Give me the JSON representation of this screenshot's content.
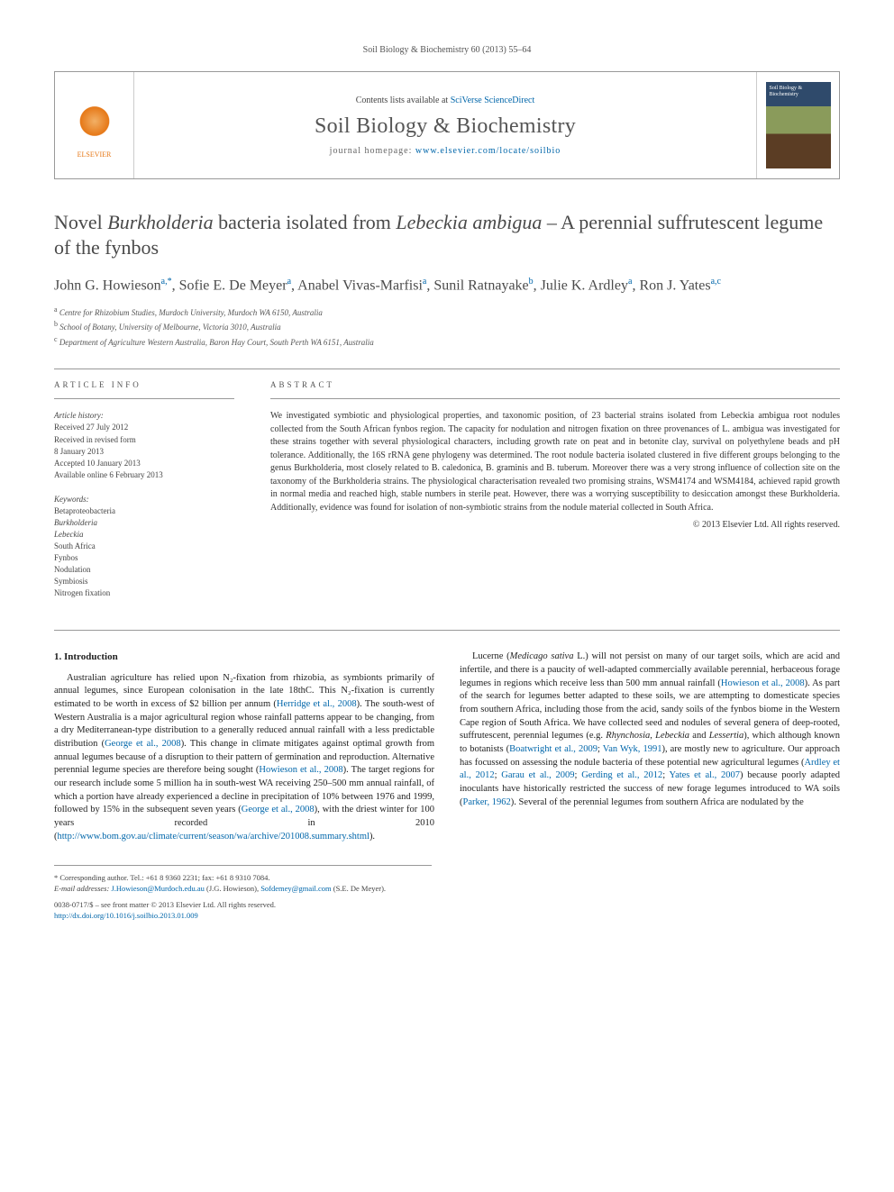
{
  "running_head": "Soil Biology & Biochemistry 60 (2013) 55–64",
  "banner": {
    "contents_prefix": "Contents lists available at ",
    "contents_link": "SciVerse ScienceDirect",
    "journal_title": "Soil Biology & Biochemistry",
    "homepage_prefix": "journal homepage: ",
    "homepage_url": "www.elsevier.com/locate/soilbio",
    "publisher_name": "ELSEVIER",
    "cover_text": "Soil Biology & Biochemistry"
  },
  "title_parts": {
    "p1": "Novel ",
    "i1": "Burkholderia",
    "p2": " bacteria isolated from ",
    "i2": "Lebeckia ambigua",
    "p3": " – A perennial suffrutescent legume of the fynbos"
  },
  "authors_html": "John G. Howieson",
  "authors": [
    {
      "name": "John G. Howieson",
      "sup": "a,*"
    },
    {
      "name": "Sofie E. De Meyer",
      "sup": "a"
    },
    {
      "name": "Anabel Vivas-Marfisi",
      "sup": "a"
    },
    {
      "name": "Sunil Ratnayake",
      "sup": "b"
    },
    {
      "name": "Julie K. Ardley",
      "sup": "a"
    },
    {
      "name": "Ron J. Yates",
      "sup": "a,c"
    }
  ],
  "affiliations": [
    {
      "sup": "a",
      "text": "Centre for Rhizobium Studies, Murdoch University, Murdoch WA 6150, Australia"
    },
    {
      "sup": "b",
      "text": "School of Botany, University of Melbourne, Victoria 3010, Australia"
    },
    {
      "sup": "c",
      "text": "Department of Agriculture Western Australia, Baron Hay Court, South Perth WA 6151, Australia"
    }
  ],
  "article_info": {
    "head": "ARTICLE INFO",
    "history_label": "Article history:",
    "history": [
      "Received 27 July 2012",
      "Received in revised form",
      "8 January 2013",
      "Accepted 10 January 2013",
      "Available online 6 February 2013"
    ],
    "keywords_label": "Keywords:",
    "keywords": [
      "Betaproteobacteria",
      "Burkholderia",
      "Lebeckia",
      "South Africa",
      "Fynbos",
      "Nodulation",
      "Symbiosis",
      "Nitrogen fixation"
    ]
  },
  "abstract": {
    "head": "ABSTRACT",
    "text": "We investigated symbiotic and physiological properties, and taxonomic position, of 23 bacterial strains isolated from Lebeckia ambigua root nodules collected from the South African fynbos region. The capacity for nodulation and nitrogen fixation on three provenances of L. ambigua was investigated for these strains together with several physiological characters, including growth rate on peat and in betonite clay, survival on polyethylene beads and pH tolerance. Additionally, the 16S rRNA gene phylogeny was determined. The root nodule bacteria isolated clustered in five different groups belonging to the genus Burkholderia, most closely related to B. caledonica, B. graminis and B. tuberum. Moreover there was a very strong influence of collection site on the taxonomy of the Burkholderia strains. The physiological characterisation revealed two promising strains, WSM4174 and WSM4184, achieved rapid growth in normal media and reached high, stable numbers in sterile peat. However, there was a worrying susceptibility to desiccation amongst these Burkholderia. Additionally, evidence was found for isolation of non-symbiotic strains from the nodule material collected in South Africa.",
    "copyright": "© 2013 Elsevier Ltd. All rights reserved."
  },
  "introduction": {
    "heading": "1. Introduction",
    "para1": {
      "t1": "Australian agriculture has relied upon N₂-fixation from rhizobia, as symbionts primarily of annual legumes, since European colonisation in the late 18thC. This N₂-fixation is currently estimated to be worth in excess of $2 billion per annum (",
      "l1": "Herridge et al., 2008",
      "t2": "). The south-west of Western Australia is a major agricultural region whose rainfall patterns appear to be changing, from a dry Mediterranean-type distribution to a generally reduced annual rainfall with a less predictable distribution (",
      "l2": "George et al., 2008",
      "t3": "). This change in climate mitigates against optimal growth from annual legumes because of a disruption to their pattern of germination and reproduction. Alternative perennial legume species are therefore being sought (",
      "l3": "Howieson et al., 2008",
      "t4": "). The target regions for our research include some 5 million ha in south-west WA receiving 250–500 mm annual rainfall, of which a portion have already experienced a decline in precipitation of 10% between 1976 and 1999, followed by 15% in the subsequent seven years (",
      "l4": "George et al., 2008",
      "t5": "), with the driest winter for 100 years recorded in 2010 (",
      "l5": "http://www.bom.gov.au/climate/current/season/wa/archive/201008.summary.shtml",
      "t6": ")."
    },
    "para2": {
      "t1": "Lucerne (",
      "i1": "Medicago sativa",
      "t2": " L.) will not persist on many of our target soils, which are acid and infertile, and there is a paucity of well-adapted commercially available perennial, herbaceous forage legumes in regions which receive less than 500 mm annual rainfall (",
      "l1": "Howieson et al., 2008",
      "t3": "). As part of the search for legumes better adapted to these soils, we are attempting to domesticate species from southern Africa, including those from the acid, sandy soils of the fynbos biome in the Western Cape region of South Africa. We have collected seed and nodules of several genera of deep-rooted, suffrutescent, perennial legumes (e.g. ",
      "i2": "Rhynchosia",
      "t4": ", ",
      "i3": "Lebeckia",
      "t5": " and ",
      "i4": "Lessertia",
      "t6": "), which although known to botanists (",
      "l2": "Boatwright et al., 2009",
      "t7": "; ",
      "l3": "Van Wyk, 1991",
      "t8": "), are mostly new to agriculture. Our approach has focussed on assessing the nodule bacteria of these potential new agricultural legumes (",
      "l4": "Ardley et al., 2012",
      "t9": "; ",
      "l5": "Garau et al., 2009",
      "t10": "; ",
      "l6": "Gerding et al., 2012",
      "t11": "; ",
      "l7": "Yates et al., 2007",
      "t12": ") because poorly adapted inoculants have historically restricted the success of new forage legumes introduced to WA soils (",
      "l8": "Parker, 1962",
      "t13": "). Several of the perennial legumes from southern Africa are nodulated by the"
    }
  },
  "footnotes": {
    "corr_label": "* Corresponding author. Tel.: +61 8 9360 2231; fax: +61 8 9310 7084.",
    "email_label": "E-mail addresses:",
    "email1": "J.Howieson@Murdoch.edu.au",
    "email1_who": " (J.G. Howieson), ",
    "email2": "Sofdemey@gmail.com",
    "email2_who": " (S.E. De Meyer)."
  },
  "doi": {
    "line1": "0038-0717/$ – see front matter © 2013 Elsevier Ltd. All rights reserved.",
    "label": "http://dx.doi.org/10.1016/j.soilbio.2013.01.009"
  },
  "colors": {
    "link": "#0066aa",
    "text": "#333333",
    "rule": "#999999",
    "elsevier_orange": "#e67817"
  }
}
